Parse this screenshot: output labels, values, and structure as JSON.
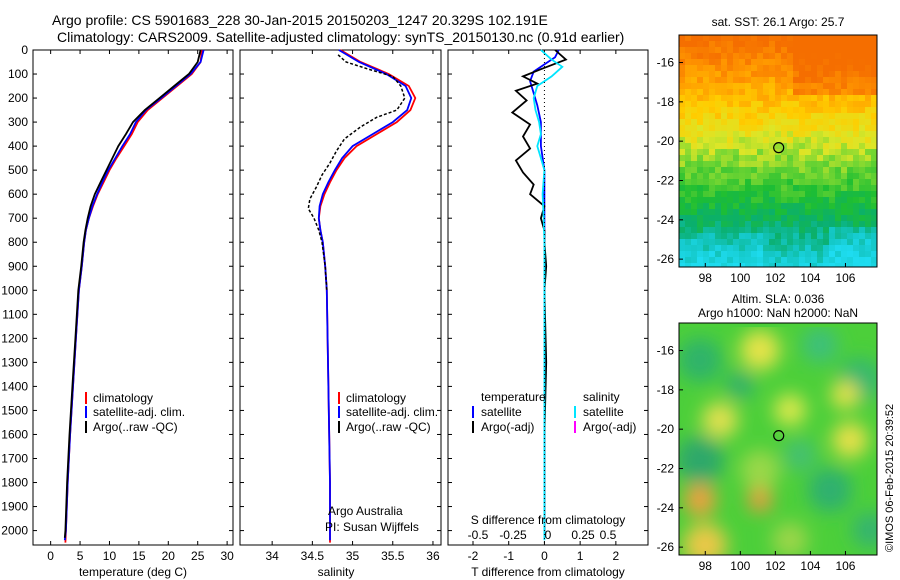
{
  "header": {
    "line1": "Argo profile: CS 5901683_228 30-Jan-2015 20150203_1247 20.329S 102.191E",
    "line2": "Climatology: CARS2009. Satellite-adjusted climatology: synTS_20150130.nc (0.91d earlier)"
  },
  "depth_ticks": [
    "0",
    "100",
    "200",
    "300",
    "400",
    "500",
    "600",
    "700",
    "800",
    "900",
    "1000",
    "1100",
    "1200",
    "1300",
    "1400",
    "1500",
    "1600",
    "1700",
    "1800",
    "1900",
    "2000"
  ],
  "colors": {
    "climatology": "#ff0000",
    "satellite": "#0000ff",
    "argo": "#000000",
    "salinity_sat": "#00e5ff",
    "salinity_argo": "#ff00ff"
  },
  "chart_data": [
    {
      "type": "line",
      "id": "temperature",
      "xlabel": "temperature (deg C)",
      "x_ticks": [
        "0",
        "5",
        "10",
        "15",
        "20",
        "25",
        "30"
      ],
      "xlim": [
        -3,
        31
      ],
      "ylim": [
        2060,
        0
      ],
      "legend": [
        "climatology",
        "satellite-adj. clim.",
        "Argo(..raw -QC)"
      ],
      "series": [
        {
          "name": "climatology",
          "color": "#ff0000",
          "points": [
            [
              25.7,
              0
            ],
            [
              25.5,
              50
            ],
            [
              24,
              100
            ],
            [
              21.5,
              150
            ],
            [
              19,
              200
            ],
            [
              16.5,
              250
            ],
            [
              14.8,
              300
            ],
            [
              13.8,
              350
            ],
            [
              12.5,
              400
            ],
            [
              11.2,
              450
            ],
            [
              10,
              500
            ],
            [
              9,
              550
            ],
            [
              8,
              600
            ],
            [
              7.2,
              650
            ],
            [
              6.5,
              700
            ],
            [
              6,
              750
            ],
            [
              5.7,
              800
            ],
            [
              5.3,
              900
            ],
            [
              4.8,
              1000
            ],
            [
              4.3,
              1200
            ],
            [
              3.8,
              1400
            ],
            [
              3.3,
              1600
            ],
            [
              2.9,
              1800
            ],
            [
              2.6,
              2000
            ],
            [
              2.5,
              2050
            ]
          ]
        },
        {
          "name": "satellite-adj. clim.",
          "color": "#0000ff",
          "points": [
            [
              26,
              0
            ],
            [
              25.5,
              50
            ],
            [
              23.8,
              100
            ],
            [
              21.3,
              150
            ],
            [
              18.8,
              200
            ],
            [
              16.2,
              250
            ],
            [
              14.5,
              300
            ],
            [
              13.5,
              350
            ],
            [
              12.2,
              400
            ],
            [
              11,
              450
            ],
            [
              9.8,
              500
            ],
            [
              8.8,
              550
            ],
            [
              7.9,
              600
            ],
            [
              7.1,
              650
            ],
            [
              6.5,
              700
            ],
            [
              6,
              750
            ],
            [
              5.7,
              800
            ],
            [
              5.3,
              900
            ],
            [
              4.8,
              1000
            ],
            [
              4.3,
              1200
            ],
            [
              3.8,
              1400
            ],
            [
              3.3,
              1600
            ],
            [
              2.9,
              1800
            ],
            [
              2.6,
              2000
            ],
            [
              2.4,
              2040
            ]
          ]
        },
        {
          "name": "Argo(..raw -QC)",
          "color": "#000000",
          "points": [
            [
              25.5,
              0
            ],
            [
              25,
              50
            ],
            [
              23.5,
              100
            ],
            [
              21,
              150
            ],
            [
              18.5,
              200
            ],
            [
              16,
              250
            ],
            [
              14,
              300
            ],
            [
              12.8,
              350
            ],
            [
              11.5,
              400
            ],
            [
              10.5,
              450
            ],
            [
              9.5,
              500
            ],
            [
              8.5,
              550
            ],
            [
              7.5,
              600
            ],
            [
              6.8,
              650
            ],
            [
              6.3,
              700
            ],
            [
              5.9,
              750
            ],
            [
              5.6,
              800
            ],
            [
              5.2,
              900
            ],
            [
              4.7,
              1000
            ],
            [
              4.2,
              1200
            ],
            [
              3.7,
              1400
            ],
            [
              3.2,
              1600
            ],
            [
              2.8,
              1800
            ],
            [
              2.5,
              2000
            ],
            [
              2.4,
              2030
            ]
          ]
        }
      ]
    },
    {
      "type": "line",
      "id": "salinity",
      "xlabel": "salinity",
      "x_ticks": [
        "34",
        "34.5",
        "35",
        "35.5",
        "36"
      ],
      "xlim": [
        33.6,
        36.1
      ],
      "ylim": [
        2060,
        0
      ],
      "legend": [
        "climatology",
        "satellite-adj. clim.",
        "Argo(..raw -QC)"
      ],
      "annotation": [
        "Argo Australia",
        "PI: Susan Wijffels"
      ],
      "series": [
        {
          "name": "climatology",
          "color": "#ff0000",
          "points": [
            [
              34.85,
              0
            ],
            [
              35.1,
              50
            ],
            [
              35.45,
              100
            ],
            [
              35.7,
              150
            ],
            [
              35.78,
              200
            ],
            [
              35.72,
              250
            ],
            [
              35.55,
              300
            ],
            [
              35.3,
              350
            ],
            [
              35.05,
              400
            ],
            [
              34.9,
              450
            ],
            [
              34.8,
              500
            ],
            [
              34.72,
              550
            ],
            [
              34.65,
              600
            ],
            [
              34.6,
              650
            ],
            [
              34.58,
              700
            ],
            [
              34.6,
              750
            ],
            [
              34.63,
              800
            ],
            [
              34.66,
              900
            ],
            [
              34.68,
              1000
            ],
            [
              34.69,
              1200
            ],
            [
              34.7,
              1400
            ],
            [
              34.71,
              1600
            ],
            [
              34.72,
              1800
            ],
            [
              34.72,
              2000
            ],
            [
              34.72,
              2050
            ]
          ]
        },
        {
          "name": "satellite-adj. clim.",
          "color": "#0000ff",
          "points": [
            [
              34.83,
              0
            ],
            [
              35.08,
              50
            ],
            [
              35.42,
              100
            ],
            [
              35.66,
              150
            ],
            [
              35.73,
              200
            ],
            [
              35.68,
              250
            ],
            [
              35.5,
              300
            ],
            [
              35.25,
              350
            ],
            [
              35,
              400
            ],
            [
              34.87,
              450
            ],
            [
              34.78,
              500
            ],
            [
              34.7,
              550
            ],
            [
              34.63,
              600
            ],
            [
              34.59,
              650
            ],
            [
              34.58,
              700
            ],
            [
              34.6,
              750
            ],
            [
              34.63,
              800
            ],
            [
              34.66,
              900
            ],
            [
              34.68,
              1000
            ],
            [
              34.69,
              1200
            ],
            [
              34.7,
              1400
            ],
            [
              34.71,
              1600
            ],
            [
              34.72,
              1800
            ],
            [
              34.72,
              2000
            ],
            [
              34.72,
              2040
            ]
          ]
        },
        {
          "name": "Argo(..raw -QC)",
          "color": "#000000",
          "points": [
            [
              34.82,
              20
            ],
            [
              34.92,
              50
            ],
            [
              35.2,
              80
            ],
            [
              35.5,
              110
            ],
            [
              35.6,
              150
            ],
            [
              35.65,
              200
            ],
            [
              35.55,
              250
            ],
            [
              35.3,
              280
            ],
            [
              35.1,
              320
            ],
            [
              34.9,
              370
            ],
            [
              34.8,
              420
            ],
            [
              34.72,
              470
            ],
            [
              34.62,
              520
            ],
            [
              34.55,
              570
            ],
            [
              34.47,
              620
            ],
            [
              34.45,
              660
            ],
            [
              34.52,
              700
            ],
            [
              34.58,
              750
            ],
            [
              34.62,
              800
            ],
            [
              34.66,
              900
            ],
            [
              34.68,
              1000
            ]
          ]
        }
      ]
    },
    {
      "type": "line",
      "id": "difference",
      "xlabel": "T difference from climatology",
      "xlabel_top": "S difference from climatology",
      "x_ticks": [
        "-2",
        "-1",
        "0",
        "1",
        "2"
      ],
      "x_ticks_top": [
        "-0.5",
        "-0.25",
        "0",
        "0.25",
        "0.5"
      ],
      "xlim": [
        -2.7,
        2.9
      ],
      "ylim": [
        2060,
        0
      ],
      "legend_left_title": "temperature",
      "legend_right_title": "salinity",
      "legend_left": [
        "satellite",
        "Argo(-adj)"
      ],
      "legend_right": [
        "satellite",
        "Argo(-adj)"
      ],
      "series": [
        {
          "name": "temperature satellite",
          "color": "#0000ff",
          "points": [
            [
              0.4,
              0
            ],
            [
              0.3,
              30
            ],
            [
              0,
              60
            ],
            [
              -0.3,
              90
            ],
            [
              -0.4,
              130
            ],
            [
              -0.3,
              180
            ],
            [
              -0.2,
              230
            ],
            [
              -0.1,
              300
            ],
            [
              -0.1,
              400
            ],
            [
              0,
              500
            ],
            [
              0,
              600
            ],
            [
              0,
              800
            ],
            [
              0,
              1000
            ],
            [
              0,
              1500
            ],
            [
              0,
              2030
            ]
          ]
        },
        {
          "name": "temperature Argo(-adj)",
          "color": "#000000",
          "points": [
            [
              0.3,
              0
            ],
            [
              0.6,
              40
            ],
            [
              -0.1,
              80
            ],
            [
              -0.6,
              110
            ],
            [
              -0.2,
              140
            ],
            [
              -0.8,
              170
            ],
            [
              -0.5,
              210
            ],
            [
              -0.9,
              260
            ],
            [
              -0.4,
              310
            ],
            [
              -0.6,
              360
            ],
            [
              -0.4,
              410
            ],
            [
              -0.8,
              460
            ],
            [
              -0.6,
              510
            ],
            [
              -0.3,
              560
            ],
            [
              -0.4,
              600
            ],
            [
              0,
              650
            ],
            [
              -0.1,
              700
            ],
            [
              0,
              750
            ],
            [
              0,
              800
            ],
            [
              0.05,
              900
            ],
            [
              0,
              1000
            ],
            [
              0.05,
              1300
            ],
            [
              0,
              1600
            ],
            [
              0,
              1800
            ],
            [
              0,
              2030
            ]
          ]
        },
        {
          "name": "salinity satellite",
          "color": "#00e5ff",
          "points": [
            [
              -0.1,
              0
            ],
            [
              0.2,
              40
            ],
            [
              0.5,
              70
            ],
            [
              0.2,
              110
            ],
            [
              -0.2,
              150
            ],
            [
              -0.3,
              200
            ],
            [
              -0.25,
              250
            ],
            [
              -0.15,
              300
            ],
            [
              -0.1,
              350
            ],
            [
              -0.2,
              400
            ],
            [
              -0.1,
              450
            ],
            [
              0,
              500
            ],
            [
              -0.05,
              600
            ],
            [
              -0.02,
              700
            ],
            [
              0,
              800
            ],
            [
              0,
              1000
            ],
            [
              0,
              1500
            ],
            [
              0,
              2040
            ]
          ]
        }
      ]
    },
    {
      "type": "heatmap",
      "id": "sst-map",
      "title": "sat. SST: 26.1  Argo: 25.7",
      "x_ticks": [
        "98",
        "100",
        "102",
        "104",
        "106"
      ],
      "y_ticks": [
        "-16",
        "-18",
        "-20",
        "-22",
        "-24",
        "-26"
      ],
      "xlim": [
        96.5,
        107.8
      ],
      "ylim": [
        -26.4,
        -14.6
      ],
      "marker": [
        102.19,
        -20.33
      ]
    },
    {
      "type": "heatmap",
      "id": "sla-map",
      "title": "Altim. SLA: 0.036",
      "subtitle": "Argo h1000: NaN  h2000: NaN",
      "x_ticks": [
        "98",
        "100",
        "102",
        "104",
        "106"
      ],
      "y_ticks": [
        "-16",
        "-18",
        "-20",
        "-22",
        "-24",
        "-26"
      ],
      "xlim": [
        96.5,
        107.8
      ],
      "ylim": [
        -26.4,
        -14.6
      ],
      "marker": [
        102.19,
        -20.33
      ]
    }
  ],
  "stamp": "©IMOS 06-Feb-2015 20:39:52"
}
